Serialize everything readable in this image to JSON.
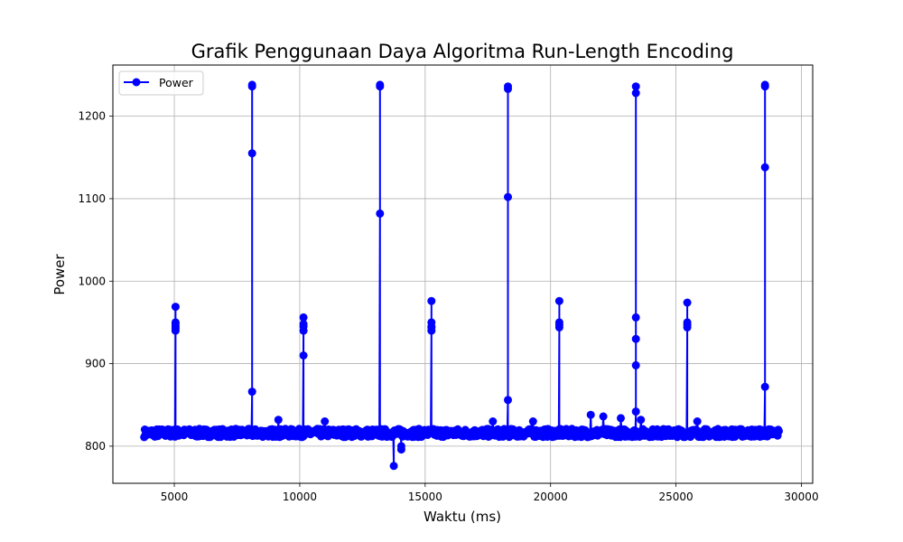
{
  "chart_data": {
    "type": "line",
    "title": "Grafik Penggunaan Daya Algoritma Run-Length Encoding",
    "xlabel": "Waktu (ms)",
    "ylabel": "Power",
    "xlim": [
      2550,
      30450
    ],
    "ylim": [
      755,
      1262
    ],
    "x_ticks": [
      5000,
      10000,
      15000,
      20000,
      25000,
      30000
    ],
    "y_ticks": [
      800,
      900,
      1000,
      1100,
      1200
    ],
    "grid": true,
    "legend_position": "top-left",
    "series": [
      {
        "name": "Power",
        "color": "#0000ff",
        "marker": "circle",
        "x_range": [
          3800,
          29100
        ],
        "baseline": 816,
        "baseline_spread": 5,
        "spikes": [
          {
            "x": 5050,
            "values": [
              940,
              945,
              950,
              948,
              969,
              943
            ]
          },
          {
            "x": 8100,
            "values": [
              866,
              1155,
              1238,
              1236
            ]
          },
          {
            "x": 10150,
            "values": [
              940,
              948,
              956,
              910,
              945
            ]
          },
          {
            "x": 13200,
            "values": [
              1082,
              1238,
              1236
            ]
          },
          {
            "x": 13750,
            "values": [
              776
            ]
          },
          {
            "x": 14050,
            "values": [
              796,
              800
            ]
          },
          {
            "x": 15250,
            "values": [
              940,
              945,
              950,
              976,
              944
            ]
          },
          {
            "x": 18300,
            "values": [
              856,
              1102,
              1236,
              1233
            ]
          },
          {
            "x": 20350,
            "values": [
              944,
              950,
              976,
              947
            ]
          },
          {
            "x": 23400,
            "values": [
              842,
              898,
              930,
              956,
              1228,
              1236
            ]
          },
          {
            "x": 25450,
            "values": [
              944,
              950,
              974,
              947
            ]
          },
          {
            "x": 28550,
            "values": [
              872,
              1138,
              1238,
              1236
            ]
          }
        ],
        "bumps": [
          {
            "x": 9150,
            "value": 832
          },
          {
            "x": 11000,
            "value": 830
          },
          {
            "x": 17700,
            "value": 830
          },
          {
            "x": 19300,
            "value": 830
          },
          {
            "x": 21600,
            "value": 838
          },
          {
            "x": 22100,
            "value": 836
          },
          {
            "x": 22800,
            "value": 834
          },
          {
            "x": 23600,
            "value": 832
          },
          {
            "x": 25850,
            "value": 830
          }
        ]
      }
    ]
  }
}
